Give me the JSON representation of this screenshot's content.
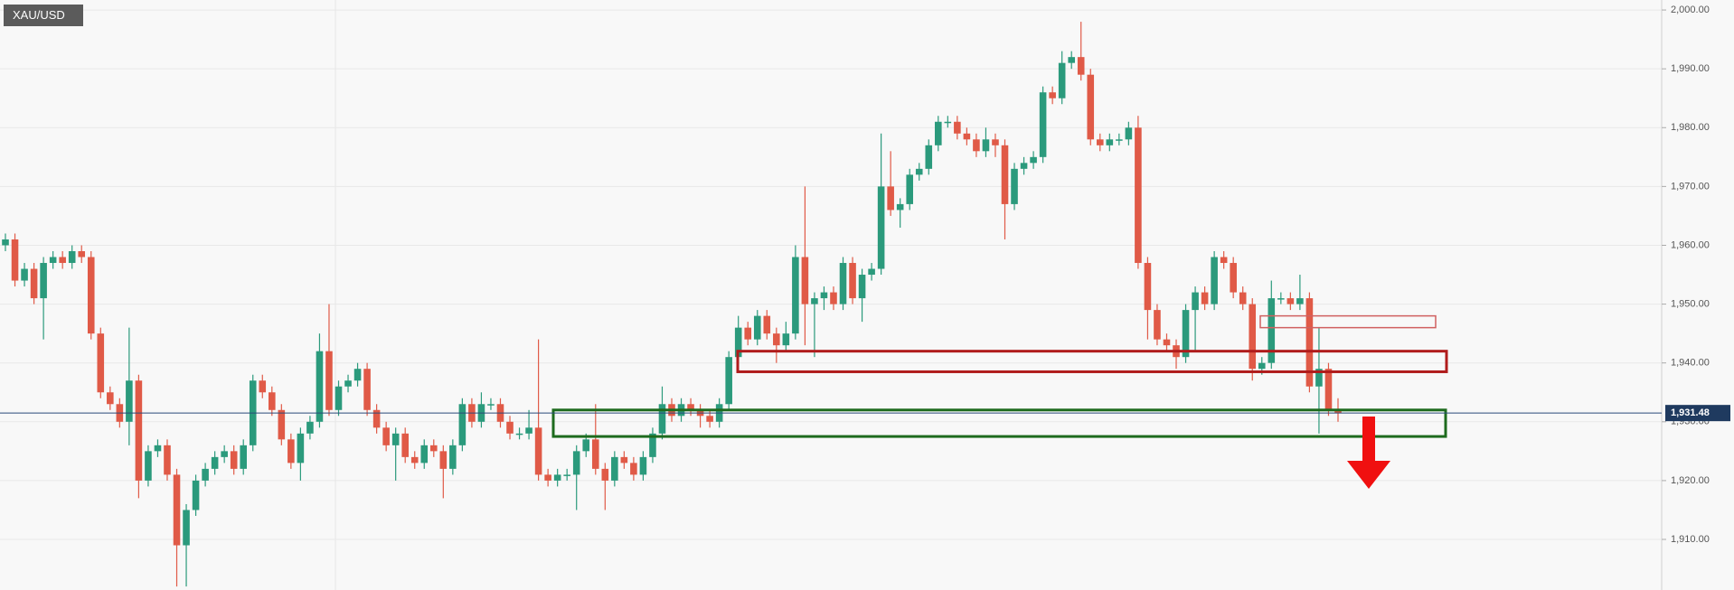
{
  "chart_data": {
    "type": "candlestick",
    "title": "XAU/USD",
    "up_color": "#2b9a7c",
    "down_color": "#e05a47",
    "ylim": [
      1901.4,
      2001.7
    ],
    "yticks": [
      {
        "value": 1910,
        "label": "1,910.00"
      },
      {
        "value": 1920,
        "label": "1,920.00"
      },
      {
        "value": 1930,
        "label": "1,930.00"
      },
      {
        "value": 1940,
        "label": "1,940.00"
      },
      {
        "value": 1950,
        "label": "1,950.00"
      },
      {
        "value": 1960,
        "label": "1,960.00"
      },
      {
        "value": 1970,
        "label": "1,970.00"
      },
      {
        "value": 1980,
        "label": "1,980.00"
      },
      {
        "value": 1990,
        "label": "1,990.00"
      },
      {
        "value": 2000,
        "label": "2,000.00"
      }
    ],
    "grid": true,
    "last_price": {
      "value": 1931.48,
      "label": "1,931.48"
    },
    "zones": [
      {
        "color": "#1e6b1e",
        "low": 1927.5,
        "high": 1932
      },
      {
        "color": "#b01c1c",
        "low": 1938.5,
        "high": 1942
      },
      {
        "color": "#d06060",
        "low": 1946,
        "high": 1948
      }
    ],
    "open": [
      1960,
      1961,
      1954,
      1956,
      1951,
      1957,
      1958,
      1957,
      1959,
      1958,
      1945,
      1935,
      1933,
      1930,
      1937,
      1920,
      1925,
      1926,
      1921,
      1909,
      1915,
      1920,
      1922,
      1924,
      1925,
      1922,
      1926,
      1937,
      1935,
      1932,
      1927,
      1923,
      1928,
      1930,
      1942,
      1932,
      1936,
      1937,
      1939,
      1932,
      1929,
      1926,
      1928,
      1924,
      1923,
      1926,
      1925,
      1922,
      1926,
      1933,
      1930,
      1933,
      1933,
      1930,
      1928,
      1928,
      1929,
      1921,
      1920,
      1921,
      1921,
      1925,
      1927,
      1922,
      1920,
      1924,
      1923,
      1921,
      1924,
      1928,
      1933,
      1931,
      1933,
      1932,
      1931,
      1930,
      1933,
      1941,
      1946,
      1944,
      1948,
      1945,
      1943,
      1945,
      1958,
      1950,
      1951,
      1952,
      1950,
      1957,
      1951,
      1955,
      1956,
      1970,
      1966,
      1967,
      1972,
      1973,
      1977,
      1981,
      1981,
      1979,
      1978,
      1976,
      1978,
      1977,
      1967,
      1973,
      1974,
      1975,
      1986,
      1985,
      1991,
      1992,
      1989,
      1978,
      1977,
      1978,
      1978,
      1980,
      1957,
      1949,
      1944,
      1943,
      1941,
      1949,
      1952,
      1950,
      1958,
      1957,
      1952,
      1950,
      1939,
      1940,
      1951,
      1951,
      1950,
      1951,
      1936,
      1939,
      1932
    ],
    "high": [
      1962,
      1962,
      1957,
      1957,
      1958,
      1959,
      1959,
      1960,
      1960,
      1959,
      1946,
      1936,
      1934,
      1946,
      1938,
      1926,
      1927,
      1927,
      1922,
      1916,
      1921,
      1923,
      1925,
      1926,
      1926,
      1927,
      1938,
      1938,
      1936,
      1933,
      1928,
      1929,
      1931,
      1945,
      1950,
      1937,
      1938,
      1940,
      1940,
      1933,
      1930,
      1929,
      1929,
      1925,
      1927,
      1927,
      1926,
      1927,
      1934,
      1934,
      1935,
      1934,
      1934,
      1931,
      1929,
      1932,
      1944,
      1922,
      1922,
      1922,
      1926,
      1928,
      1933,
      1923,
      1925,
      1925,
      1924,
      1925,
      1929,
      1936,
      1934,
      1934,
      1934,
      1933,
      1932,
      1934,
      1942,
      1948,
      1947,
      1949,
      1949,
      1946,
      1947,
      1960,
      1970,
      1952,
      1953,
      1953,
      1958,
      1958,
      1956,
      1957,
      1979,
      1976,
      1968,
      1973,
      1974,
      1978,
      1982,
      1982,
      1982,
      1980,
      1979,
      1980,
      1979,
      1978,
      1974,
      1975,
      1976,
      1987,
      1987,
      1993,
      1993,
      1998,
      1990,
      1979,
      1979,
      1979,
      1981,
      1982,
      1958,
      1950,
      1945,
      1944,
      1950,
      1953,
      1953,
      1959,
      1959,
      1958,
      1953,
      1951,
      1941,
      1954,
      1952,
      1952,
      1955,
      1952,
      1946,
      1940,
      1934
    ],
    "low": [
      1959,
      1953,
      1953,
      1950,
      1944,
      1956,
      1956,
      1956,
      1957,
      1944,
      1934,
      1932,
      1929,
      1926,
      1917,
      1919,
      1924,
      1920,
      1902,
      1902,
      1914,
      1919,
      1921,
      1923,
      1921,
      1921,
      1925,
      1934,
      1931,
      1926,
      1922,
      1920,
      1927,
      1929,
      1931,
      1931,
      1935,
      1936,
      1931,
      1928,
      1925,
      1920,
      1923,
      1922,
      1922,
      1924,
      1917,
      1921,
      1925,
      1929,
      1929,
      1932,
      1929,
      1927,
      1927,
      1927,
      1920,
      1919,
      1919,
      1920,
      1915,
      1924,
      1921,
      1915,
      1919,
      1922,
      1920,
      1920,
      1923,
      1927,
      1930,
      1930,
      1931,
      1929,
      1929,
      1929,
      1932,
      1940,
      1943,
      1943,
      1944,
      1940,
      1942,
      1944,
      1943,
      1941,
      1949,
      1949,
      1949,
      1950,
      1947,
      1954,
      1955,
      1965,
      1963,
      1966,
      1971,
      1972,
      1976,
      1980,
      1978,
      1977,
      1975,
      1975,
      1975,
      1961,
      1966,
      1972,
      1973,
      1974,
      1984,
      1984,
      1990,
      1988,
      1977,
      1976,
      1976,
      1977,
      1977,
      1956,
      1944,
      1943,
      1942,
      1939,
      1940,
      1942,
      1949,
      1949,
      1956,
      1951,
      1949,
      1937,
      1938,
      1939,
      1950,
      1949,
      1949,
      1935,
      1928,
      1931,
      1930
    ],
    "close": [
      1961,
      1954,
      1956,
      1951,
      1957,
      1958,
      1957,
      1959,
      1958,
      1945,
      1935,
      1933,
      1930,
      1937,
      1920,
      1925,
      1926,
      1921,
      1909,
      1915,
      1920,
      1922,
      1924,
      1925,
      1922,
      1926,
      1937,
      1935,
      1932,
      1927,
      1923,
      1928,
      1930,
      1942,
      1932,
      1936,
      1937,
      1939,
      1932,
      1929,
      1926,
      1928,
      1924,
      1923,
      1926,
      1925,
      1922,
      1926,
      1933,
      1930,
      1933,
      1933,
      1930,
      1928,
      1928,
      1929,
      1921,
      1920,
      1921,
      1921,
      1925,
      1927,
      1922,
      1920,
      1924,
      1923,
      1921,
      1924,
      1928,
      1933,
      1931,
      1933,
      1932,
      1931,
      1930,
      1933,
      1941,
      1946,
      1944,
      1948,
      1945,
      1943,
      1945,
      1958,
      1950,
      1951,
      1952,
      1950,
      1957,
      1951,
      1955,
      1956,
      1970,
      1966,
      1967,
      1972,
      1973,
      1977,
      1981,
      1981,
      1979,
      1978,
      1976,
      1978,
      1977,
      1967,
      1973,
      1974,
      1975,
      1986,
      1985,
      1991,
      1992,
      1989,
      1978,
      1977,
      1978,
      1978,
      1980,
      1957,
      1949,
      1944,
      1943,
      1941,
      1949,
      1952,
      1950,
      1958,
      1957,
      1952,
      1950,
      1939,
      1940,
      1951,
      1951,
      1950,
      1951,
      1936,
      1939,
      1932,
      1931.48
    ]
  }
}
